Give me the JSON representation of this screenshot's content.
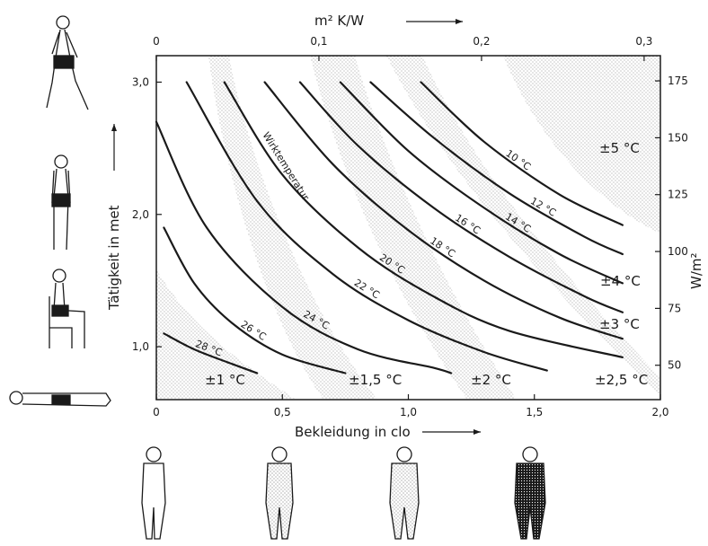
{
  "chart_data": {
    "type": "line",
    "xlabel": "Bekleidung in clo",
    "ylabel": "Tätigkeit in met",
    "secondary_xlabel": "m² K/W",
    "secondary_ylabel": "W/m²",
    "xlim": [
      0,
      2.0
    ],
    "ylim": [
      0.6,
      3.2
    ],
    "x_ticks": [
      "0",
      "0,5",
      "1,0",
      "1,5",
      "2,0"
    ],
    "y_ticks": [
      "1,0",
      "2,0",
      "3,0"
    ],
    "secondary_x_ticks": [
      "0",
      "0,1",
      "0,2",
      "0,3"
    ],
    "secondary_y_ticks": [
      "50",
      "75",
      "100",
      "125",
      "150",
      "175"
    ],
    "grid": false,
    "series": [
      {
        "name": "28 °C",
        "x": [
          0.03,
          0.15,
          0.3,
          0.4
        ],
        "y": [
          1.1,
          0.98,
          0.87,
          0.8
        ]
      },
      {
        "name": "26 °C",
        "x": [
          0.03,
          0.15,
          0.3,
          0.5,
          0.75
        ],
        "y": [
          1.9,
          1.48,
          1.18,
          0.94,
          0.8
        ]
      },
      {
        "name": "24 °C",
        "x": [
          0.0,
          0.2,
          0.5,
          0.8,
          1.1,
          1.17
        ],
        "y": [
          2.7,
          1.9,
          1.3,
          0.98,
          0.84,
          0.8
        ]
      },
      {
        "name": "22 °C",
        "x": [
          0.12,
          0.4,
          0.7,
          1.0,
          1.3,
          1.55
        ],
        "y": [
          3.0,
          2.1,
          1.55,
          1.2,
          0.96,
          0.82
        ]
      },
      {
        "name": "20 °C",
        "x": [
          0.27,
          0.5,
          0.8,
          1.1,
          1.4,
          1.85
        ],
        "y": [
          3.0,
          2.3,
          1.75,
          1.38,
          1.12,
          0.92
        ]
      },
      {
        "name": "18 °C",
        "x": [
          0.43,
          0.7,
          1.0,
          1.3,
          1.6,
          1.85
        ],
        "y": [
          3.0,
          2.38,
          1.88,
          1.5,
          1.22,
          1.06
        ]
      },
      {
        "name": "16 °C",
        "x": [
          0.57,
          0.8,
          1.1,
          1.4,
          1.7,
          1.85
        ],
        "y": [
          3.0,
          2.52,
          2.05,
          1.68,
          1.38,
          1.26
        ]
      },
      {
        "name": "14 °C",
        "x": [
          0.73,
          1.0,
          1.3,
          1.6,
          1.85
        ],
        "y": [
          3.0,
          2.48,
          2.05,
          1.7,
          1.48
        ]
      },
      {
        "name": "12 °C",
        "x": [
          0.85,
          1.1,
          1.4,
          1.7,
          1.85
        ],
        "y": [
          3.0,
          2.58,
          2.16,
          1.83,
          1.7
        ]
      },
      {
        "name": "10 °C",
        "x": [
          1.05,
          1.3,
          1.6,
          1.85
        ],
        "y": [
          3.0,
          2.55,
          2.15,
          1.92
        ]
      }
    ],
    "tolerance_labels": [
      "±1 °C",
      "±1,5 °C",
      "±2 °C",
      "±2,5 °C",
      "±3 °C",
      "±4 °C",
      "±5 °C"
    ],
    "annotations": [
      "Wirktemperatur"
    ]
  }
}
